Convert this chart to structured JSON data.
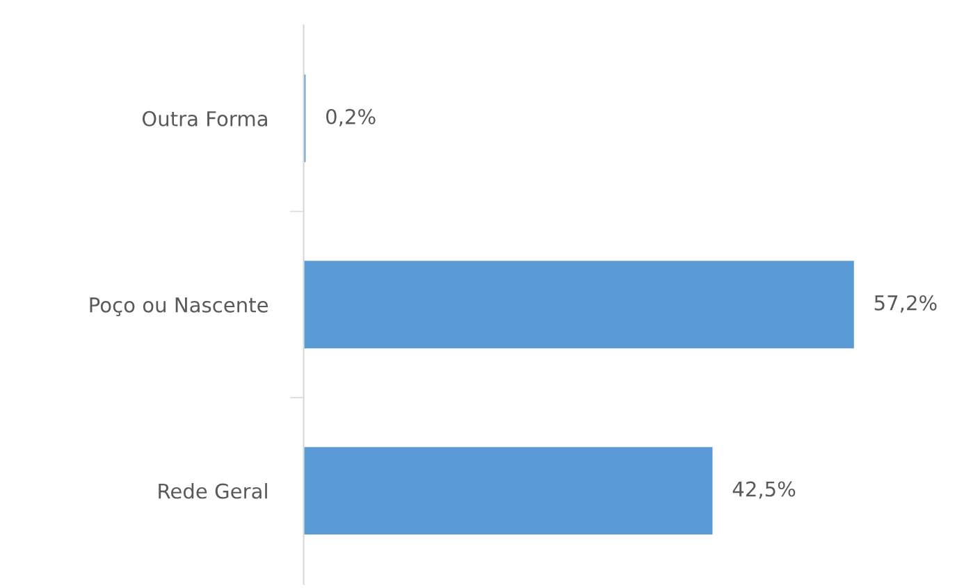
{
  "chart_data": {
    "type": "bar",
    "orientation": "horizontal",
    "categories": [
      "Outra Forma",
      "Poço ou Nascente",
      "Rede Geral"
    ],
    "values": [
      0.2,
      57.2,
      42.5
    ],
    "value_labels": [
      "0,2%",
      "57,2%",
      "42,5%"
    ],
    "color": "#5b9bd5",
    "grid": false,
    "legend": false
  }
}
